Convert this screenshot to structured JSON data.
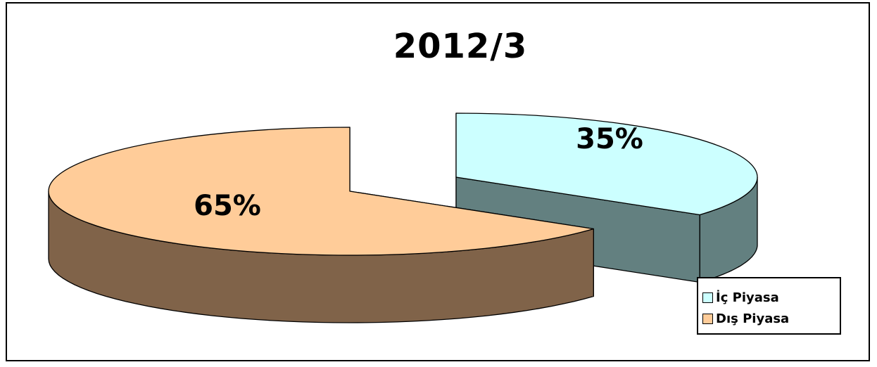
{
  "chart_data": {
    "type": "pie",
    "title": "2012/3",
    "slices": [
      {
        "label": "İç Piyasa",
        "value": 35,
        "display": "35%",
        "top_color": "#ccffff",
        "side_color": "#638080"
      },
      {
        "label": "Dış Piyasa",
        "value": 65,
        "display": "65%",
        "top_color": "#ffcc99",
        "side_color": "#806349"
      }
    ],
    "legend_position": "bottom-right",
    "style": "3d-exploded"
  }
}
